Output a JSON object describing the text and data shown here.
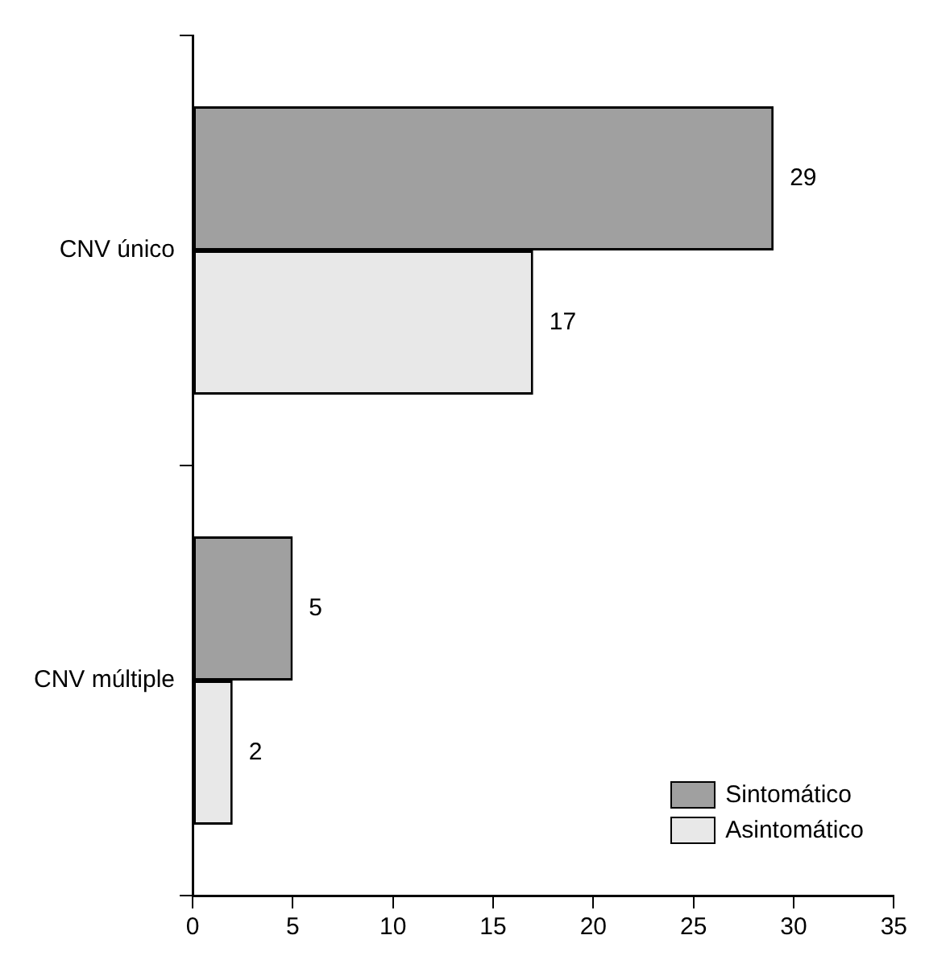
{
  "chart_data": {
    "type": "bar",
    "orientation": "horizontal",
    "categories": [
      "CNV único",
      "CNV múltiple"
    ],
    "series": [
      {
        "name": "Sintomático",
        "color": "#a0a0a0",
        "values": [
          29,
          5
        ]
      },
      {
        "name": "Asintomático",
        "color": "#e8e8e8",
        "values": [
          17,
          2
        ]
      }
    ],
    "xlim": [
      0,
      35
    ],
    "xticks": [
      0,
      5,
      10,
      15,
      20,
      25,
      30,
      35
    ],
    "data_labels": true,
    "grid": false,
    "legend": "bottom right"
  }
}
